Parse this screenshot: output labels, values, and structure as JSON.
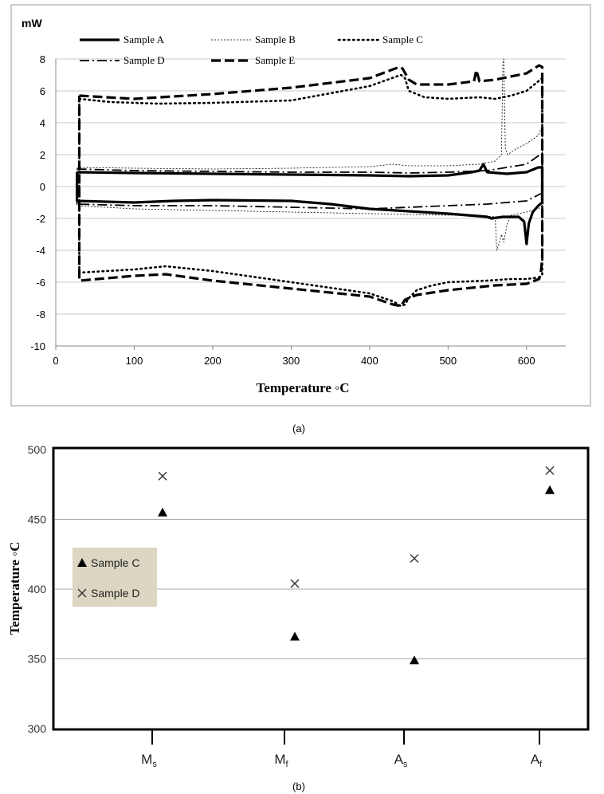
{
  "chart_data": [
    {
      "type": "line",
      "panel_label": "(a)",
      "ylabel": "mW",
      "xlabel": "Temperature ◦C",
      "xlim": [
        0,
        650
      ],
      "ylim": [
        -10,
        8
      ],
      "x_ticks": [
        0,
        100,
        200,
        300,
        400,
        500,
        600
      ],
      "y_ticks": [
        -10,
        -8,
        -6,
        -4,
        -2,
        0,
        2,
        4,
        6,
        8
      ],
      "grid": "horizontal",
      "legend_position": "top",
      "series": [
        {
          "name": "Sample A",
          "style": "thick-solid",
          "x": [
            27,
            100,
            200,
            300,
            400,
            450,
            500,
            530,
            540,
            545,
            550,
            575,
            600,
            615,
            620,
            620,
            615,
            608,
            603,
            600,
            597,
            590,
            570,
            555,
            550,
            500,
            450,
            400,
            350,
            300,
            200,
            150,
            100,
            27,
            27
          ],
          "y": [
            0.9,
            0.85,
            0.8,
            0.75,
            0.7,
            0.65,
            0.7,
            0.9,
            1.0,
            1.4,
            0.9,
            0.8,
            0.9,
            1.2,
            1.2,
            -1.0,
            -1.2,
            -1.6,
            -2.3,
            -3.6,
            -2.2,
            -1.9,
            -1.9,
            -2.0,
            -1.9,
            -1.7,
            -1.55,
            -1.4,
            -1.1,
            -0.9,
            -0.85,
            -0.9,
            -1.0,
            -0.9,
            0.9
          ]
        },
        {
          "name": "Sample B",
          "style": "thin-dotted",
          "x": [
            27,
            100,
            200,
            300,
            400,
            430,
            450,
            500,
            540,
            560,
            568,
            570,
            571,
            573,
            576,
            585,
            600,
            615,
            620,
            620,
            615,
            600,
            580,
            575,
            571,
            568,
            565,
            562,
            560,
            540,
            500,
            400,
            300,
            200,
            100,
            27,
            27
          ],
          "y": [
            1.2,
            1.15,
            1.1,
            1.15,
            1.25,
            1.4,
            1.3,
            1.3,
            1.4,
            1.6,
            2.0,
            7.9,
            8.0,
            2.4,
            2.0,
            2.3,
            2.7,
            3.2,
            3.8,
            -1.2,
            -1.4,
            -1.6,
            -1.8,
            -2.4,
            -3.5,
            -3.0,
            -3.6,
            -4.0,
            -1.9,
            -1.8,
            -1.8,
            -1.7,
            -1.6,
            -1.5,
            -1.4,
            -1.2,
            1.2
          ]
        },
        {
          "name": "Sample C",
          "style": "dotted",
          "x": [
            30,
            70,
            130,
            200,
            300,
            400,
            440,
            445,
            450,
            470,
            500,
            540,
            560,
            580,
            600,
            620,
            620,
            616,
            600,
            580,
            550,
            500,
            480,
            460,
            450,
            445,
            440,
            430,
            400,
            300,
            200,
            140,
            100,
            30,
            30
          ],
          "y": [
            5.5,
            5.3,
            5.2,
            5.25,
            5.4,
            6.3,
            7.0,
            6.8,
            6.0,
            5.6,
            5.5,
            5.6,
            5.5,
            5.7,
            6.0,
            6.8,
            -5.5,
            -5.7,
            -5.8,
            -5.8,
            -5.9,
            -6.0,
            -6.2,
            -6.5,
            -7.0,
            -7.4,
            -7.5,
            -7.2,
            -6.7,
            -6.0,
            -5.3,
            -5.0,
            -5.2,
            -5.4,
            5.5
          ]
        },
        {
          "name": "Sample D",
          "style": "dash-dot",
          "x": [
            27,
            100,
            200,
            300,
            400,
            450,
            500,
            550,
            600,
            620,
            620,
            600,
            550,
            500,
            450,
            400,
            300,
            200,
            100,
            27,
            27
          ],
          "y": [
            1.1,
            1.0,
            0.95,
            0.9,
            0.9,
            0.85,
            0.9,
            1.0,
            1.4,
            2.1,
            -0.4,
            -0.9,
            -1.1,
            -1.2,
            -1.3,
            -1.4,
            -1.3,
            -1.2,
            -1.2,
            -1.1,
            1.1
          ]
        },
        {
          "name": "Sample E",
          "style": "thick-dashed",
          "x": [
            30,
            100,
            200,
            300,
            400,
            438,
            442,
            450,
            460,
            500,
            533,
            536,
            540,
            560,
            600,
            616,
            620,
            620,
            618,
            616,
            600,
            560,
            500,
            460,
            445,
            440,
            430,
            400,
            300,
            200,
            140,
            100,
            30,
            30
          ],
          "y": [
            5.7,
            5.5,
            5.8,
            6.2,
            6.8,
            7.5,
            7.4,
            6.7,
            6.4,
            6.4,
            6.6,
            7.3,
            6.6,
            6.7,
            7.1,
            7.6,
            7.5,
            -4.5,
            -5.5,
            -5.8,
            -6.1,
            -6.2,
            -6.5,
            -6.8,
            -7.1,
            -7.5,
            -7.4,
            -6.9,
            -6.4,
            -5.9,
            -5.5,
            -5.6,
            -5.9,
            5.7
          ]
        }
      ]
    },
    {
      "type": "scatter",
      "panel_label": "(b)",
      "ylabel": "Temperature ◦C",
      "xlabel": "",
      "categories": [
        "Ms",
        "Mf",
        "As",
        "Af"
      ],
      "category_labels": [
        {
          "main": "M",
          "sub": "s"
        },
        {
          "main": "M",
          "sub": "f"
        },
        {
          "main": "A",
          "sub": "s"
        },
        {
          "main": "A",
          "sub": "f"
        }
      ],
      "ylim": [
        300,
        500
      ],
      "y_ticks": [
        300,
        350,
        400,
        450,
        500
      ],
      "grid": "horizontal",
      "legend_position": "left",
      "series": [
        {
          "name": "Sample C",
          "marker": "triangle",
          "values": [
            455,
            366,
            349,
            471
          ]
        },
        {
          "name": "Sample D",
          "marker": "x",
          "values": [
            481,
            404,
            422,
            485
          ]
        }
      ]
    }
  ]
}
